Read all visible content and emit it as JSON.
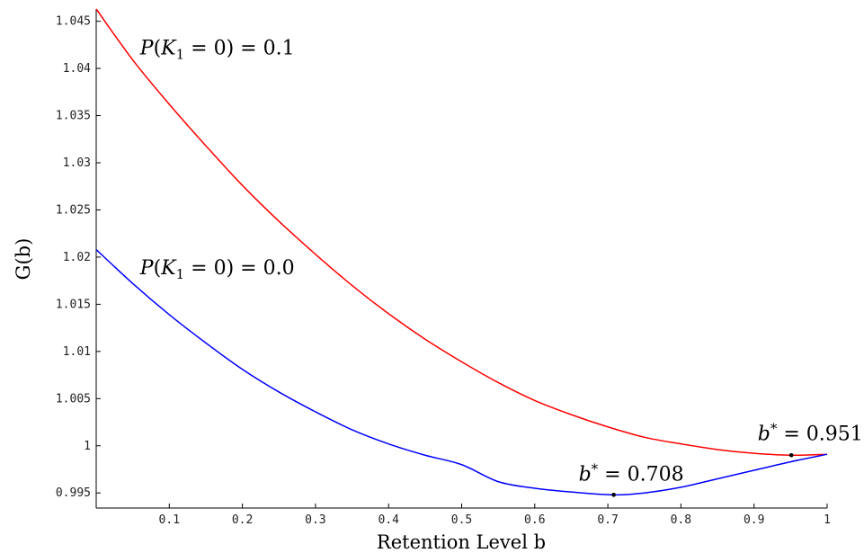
{
  "chart_data": {
    "type": "line",
    "title": "",
    "xlabel": "Retention Level b",
    "ylabel": "G(b)",
    "xlim": [
      0,
      1
    ],
    "ylim": [
      0.9934,
      1.0463
    ],
    "xticks": [
      0.1,
      0.2,
      0.3,
      0.4,
      0.5,
      0.6,
      0.7,
      0.8,
      0.9,
      1
    ],
    "xtick_labels": [
      "0.1",
      "0.2",
      "0.3",
      "0.4",
      "0.5",
      "0.6",
      "0.7",
      "0.8",
      "0.9",
      "1"
    ],
    "yticks": [
      0.995,
      1.0,
      1.005,
      1.01,
      1.015,
      1.02,
      1.025,
      1.03,
      1.035,
      1.04,
      1.045
    ],
    "ytick_labels": [
      "0.995",
      "1",
      "1.005",
      "1.01",
      "1.015",
      "1.02",
      "1.025",
      "1.03",
      "1.035",
      "1.04",
      "1.045"
    ],
    "grid": false,
    "legend": "none",
    "series": [
      {
        "name": "P(K1 = 0) = 0.1",
        "color": "#ff0000",
        "x": [
          0,
          0.05,
          0.1,
          0.15,
          0.2,
          0.25,
          0.3,
          0.35,
          0.4,
          0.45,
          0.5,
          0.55,
          0.6,
          0.65,
          0.7,
          0.75,
          0.8,
          0.85,
          0.9,
          0.951,
          1
        ],
        "y": [
          1.0463,
          1.0409,
          1.0362,
          1.0318,
          1.0276,
          1.0238,
          1.0203,
          1.017,
          1.014,
          1.0113,
          1.0089,
          1.0067,
          1.0048,
          1.0033,
          1.002,
          1.0009,
          1.0002,
          0.9996,
          0.9992,
          0.999,
          0.9991
        ],
        "optimum": {
          "x": 0.951,
          "y": 0.999
        }
      },
      {
        "name": "P(K1 = 0) = 0.0",
        "color": "#0000ff",
        "x": [
          0,
          0.05,
          0.1,
          0.15,
          0.2,
          0.25,
          0.3,
          0.35,
          0.4,
          0.45,
          0.5,
          0.55,
          0.6,
          0.65,
          0.708,
          0.75,
          0.8,
          0.85,
          0.9,
          0.95,
          1
        ],
        "y": [
          1.0208,
          1.0172,
          1.0139,
          1.0109,
          1.0081,
          1.0057,
          1.0036,
          1.0017,
          1.0002,
          0.999,
          0.998,
          0.9962,
          0.9955,
          0.9951,
          0.9948,
          0.995,
          0.9956,
          0.9965,
          0.9974,
          0.9983,
          0.9991
        ],
        "optimum": {
          "x": 0.708,
          "y": 0.9948
        }
      }
    ],
    "annotations": [
      {
        "id": "label-red",
        "prefix": "P(K",
        "sub": "1",
        "suffix": " = 0) = 0.1",
        "at_x": 0.06,
        "at_y": 1.0415
      },
      {
        "id": "label-blue",
        "prefix": "P(K",
        "sub": "1",
        "suffix": " = 0) = 0.0",
        "at_x": 0.06,
        "at_y": 1.0182
      },
      {
        "id": "label-bstar-red",
        "var": "b",
        "sup": "*",
        "suffix": " = 0.951",
        "at_x": 0.905,
        "at_y": 1.0006
      },
      {
        "id": "label-bstar-blue",
        "var": "b",
        "sup": "*",
        "suffix": " = 0.708",
        "at_x": 0.66,
        "at_y": 0.9963
      }
    ]
  }
}
